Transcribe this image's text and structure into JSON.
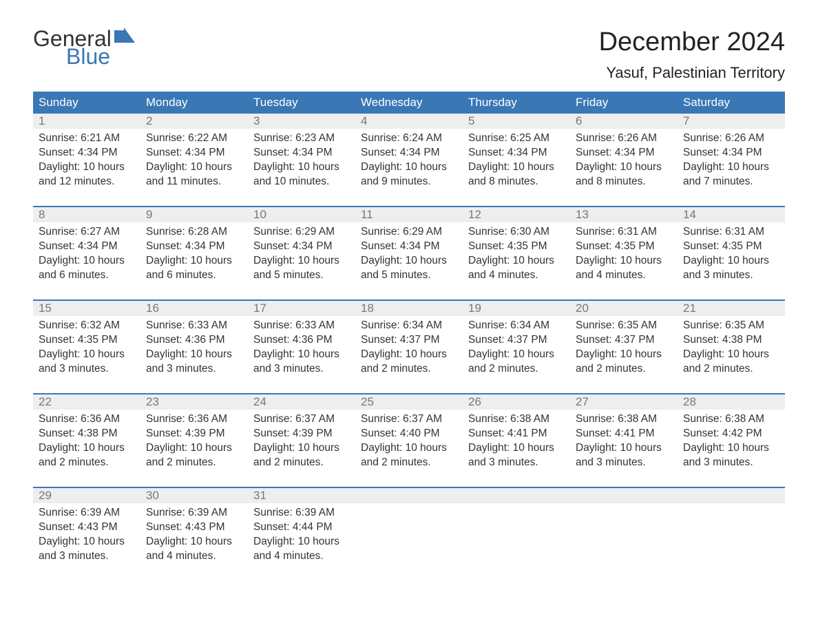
{
  "brand": {
    "text1": "General",
    "text2": "Blue",
    "icon_color": "#3a77b5"
  },
  "title": "December 2024",
  "location": "Yasuf, Palestinian Territory",
  "colors": {
    "header_bg": "#3a77b5",
    "header_text": "#ffffff",
    "daynum_bg": "#eeeeee",
    "daynum_text": "#777777",
    "body_text": "#333333",
    "week_divider": "#3a77b5",
    "page_bg": "#ffffff"
  },
  "font": {
    "family": "Arial",
    "title_size_pt": 28,
    "location_size_pt": 17,
    "header_size_pt": 13,
    "body_size_pt": 12
  },
  "day_names": [
    "Sunday",
    "Monday",
    "Tuesday",
    "Wednesday",
    "Thursday",
    "Friday",
    "Saturday"
  ],
  "weeks": [
    [
      {
        "n": "1",
        "sunrise": "Sunrise: 6:21 AM",
        "sunset": "Sunset: 4:34 PM",
        "d1": "Daylight: 10 hours",
        "d2": "and 12 minutes."
      },
      {
        "n": "2",
        "sunrise": "Sunrise: 6:22 AM",
        "sunset": "Sunset: 4:34 PM",
        "d1": "Daylight: 10 hours",
        "d2": "and 11 minutes."
      },
      {
        "n": "3",
        "sunrise": "Sunrise: 6:23 AM",
        "sunset": "Sunset: 4:34 PM",
        "d1": "Daylight: 10 hours",
        "d2": "and 10 minutes."
      },
      {
        "n": "4",
        "sunrise": "Sunrise: 6:24 AM",
        "sunset": "Sunset: 4:34 PM",
        "d1": "Daylight: 10 hours",
        "d2": "and 9 minutes."
      },
      {
        "n": "5",
        "sunrise": "Sunrise: 6:25 AM",
        "sunset": "Sunset: 4:34 PM",
        "d1": "Daylight: 10 hours",
        "d2": "and 8 minutes."
      },
      {
        "n": "6",
        "sunrise": "Sunrise: 6:26 AM",
        "sunset": "Sunset: 4:34 PM",
        "d1": "Daylight: 10 hours",
        "d2": "and 8 minutes."
      },
      {
        "n": "7",
        "sunrise": "Sunrise: 6:26 AM",
        "sunset": "Sunset: 4:34 PM",
        "d1": "Daylight: 10 hours",
        "d2": "and 7 minutes."
      }
    ],
    [
      {
        "n": "8",
        "sunrise": "Sunrise: 6:27 AM",
        "sunset": "Sunset: 4:34 PM",
        "d1": "Daylight: 10 hours",
        "d2": "and 6 minutes."
      },
      {
        "n": "9",
        "sunrise": "Sunrise: 6:28 AM",
        "sunset": "Sunset: 4:34 PM",
        "d1": "Daylight: 10 hours",
        "d2": "and 6 minutes."
      },
      {
        "n": "10",
        "sunrise": "Sunrise: 6:29 AM",
        "sunset": "Sunset: 4:34 PM",
        "d1": "Daylight: 10 hours",
        "d2": "and 5 minutes."
      },
      {
        "n": "11",
        "sunrise": "Sunrise: 6:29 AM",
        "sunset": "Sunset: 4:34 PM",
        "d1": "Daylight: 10 hours",
        "d2": "and 5 minutes."
      },
      {
        "n": "12",
        "sunrise": "Sunrise: 6:30 AM",
        "sunset": "Sunset: 4:35 PM",
        "d1": "Daylight: 10 hours",
        "d2": "and 4 minutes."
      },
      {
        "n": "13",
        "sunrise": "Sunrise: 6:31 AM",
        "sunset": "Sunset: 4:35 PM",
        "d1": "Daylight: 10 hours",
        "d2": "and 4 minutes."
      },
      {
        "n": "14",
        "sunrise": "Sunrise: 6:31 AM",
        "sunset": "Sunset: 4:35 PM",
        "d1": "Daylight: 10 hours",
        "d2": "and 3 minutes."
      }
    ],
    [
      {
        "n": "15",
        "sunrise": "Sunrise: 6:32 AM",
        "sunset": "Sunset: 4:35 PM",
        "d1": "Daylight: 10 hours",
        "d2": "and 3 minutes."
      },
      {
        "n": "16",
        "sunrise": "Sunrise: 6:33 AM",
        "sunset": "Sunset: 4:36 PM",
        "d1": "Daylight: 10 hours",
        "d2": "and 3 minutes."
      },
      {
        "n": "17",
        "sunrise": "Sunrise: 6:33 AM",
        "sunset": "Sunset: 4:36 PM",
        "d1": "Daylight: 10 hours",
        "d2": "and 3 minutes."
      },
      {
        "n": "18",
        "sunrise": "Sunrise: 6:34 AM",
        "sunset": "Sunset: 4:37 PM",
        "d1": "Daylight: 10 hours",
        "d2": "and 2 minutes."
      },
      {
        "n": "19",
        "sunrise": "Sunrise: 6:34 AM",
        "sunset": "Sunset: 4:37 PM",
        "d1": "Daylight: 10 hours",
        "d2": "and 2 minutes."
      },
      {
        "n": "20",
        "sunrise": "Sunrise: 6:35 AM",
        "sunset": "Sunset: 4:37 PM",
        "d1": "Daylight: 10 hours",
        "d2": "and 2 minutes."
      },
      {
        "n": "21",
        "sunrise": "Sunrise: 6:35 AM",
        "sunset": "Sunset: 4:38 PM",
        "d1": "Daylight: 10 hours",
        "d2": "and 2 minutes."
      }
    ],
    [
      {
        "n": "22",
        "sunrise": "Sunrise: 6:36 AM",
        "sunset": "Sunset: 4:38 PM",
        "d1": "Daylight: 10 hours",
        "d2": "and 2 minutes."
      },
      {
        "n": "23",
        "sunrise": "Sunrise: 6:36 AM",
        "sunset": "Sunset: 4:39 PM",
        "d1": "Daylight: 10 hours",
        "d2": "and 2 minutes."
      },
      {
        "n": "24",
        "sunrise": "Sunrise: 6:37 AM",
        "sunset": "Sunset: 4:39 PM",
        "d1": "Daylight: 10 hours",
        "d2": "and 2 minutes."
      },
      {
        "n": "25",
        "sunrise": "Sunrise: 6:37 AM",
        "sunset": "Sunset: 4:40 PM",
        "d1": "Daylight: 10 hours",
        "d2": "and 2 minutes."
      },
      {
        "n": "26",
        "sunrise": "Sunrise: 6:38 AM",
        "sunset": "Sunset: 4:41 PM",
        "d1": "Daylight: 10 hours",
        "d2": "and 3 minutes."
      },
      {
        "n": "27",
        "sunrise": "Sunrise: 6:38 AM",
        "sunset": "Sunset: 4:41 PM",
        "d1": "Daylight: 10 hours",
        "d2": "and 3 minutes."
      },
      {
        "n": "28",
        "sunrise": "Sunrise: 6:38 AM",
        "sunset": "Sunset: 4:42 PM",
        "d1": "Daylight: 10 hours",
        "d2": "and 3 minutes."
      }
    ],
    [
      {
        "n": "29",
        "sunrise": "Sunrise: 6:39 AM",
        "sunset": "Sunset: 4:43 PM",
        "d1": "Daylight: 10 hours",
        "d2": "and 3 minutes."
      },
      {
        "n": "30",
        "sunrise": "Sunrise: 6:39 AM",
        "sunset": "Sunset: 4:43 PM",
        "d1": "Daylight: 10 hours",
        "d2": "and 4 minutes."
      },
      {
        "n": "31",
        "sunrise": "Sunrise: 6:39 AM",
        "sunset": "Sunset: 4:44 PM",
        "d1": "Daylight: 10 hours",
        "d2": "and 4 minutes."
      },
      null,
      null,
      null,
      null
    ]
  ]
}
